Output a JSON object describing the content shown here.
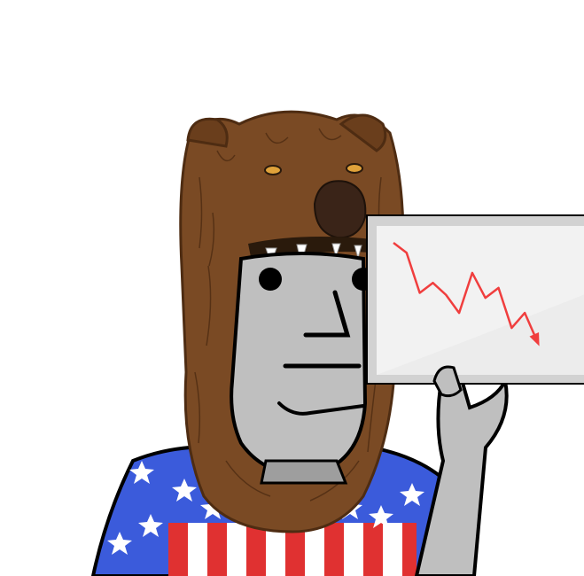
{
  "scene": {
    "subject": "npc-with-bear-hat",
    "colors": {
      "background": "#ffffff",
      "fur": "#7a4a24",
      "fur_dark": "#4e2c12",
      "fur_light": "#a0652f",
      "nose": "#3a2418",
      "eye": "#e0a23a",
      "skin": "#bfbfbf",
      "skin_shadow": "#9e9e9e",
      "outline": "#000000",
      "shirt_blue": "#3b5bdb",
      "shirt_red": "#e03131",
      "shirt_white": "#ffffff",
      "board_fill": "#ececec",
      "board_frame": "#d2d2d2",
      "trend_line": "#f03e3e"
    },
    "chart_data": {
      "type": "line",
      "title": "",
      "xlabel": "",
      "ylabel": "",
      "trend": "down",
      "x": [
        0,
        1,
        2,
        3,
        4,
        5,
        6,
        7,
        8,
        9,
        10,
        11
      ],
      "values": [
        10,
        9,
        5,
        6,
        4.8,
        3,
        7,
        4.5,
        5.5,
        1.5,
        3,
        0
      ]
    }
  }
}
